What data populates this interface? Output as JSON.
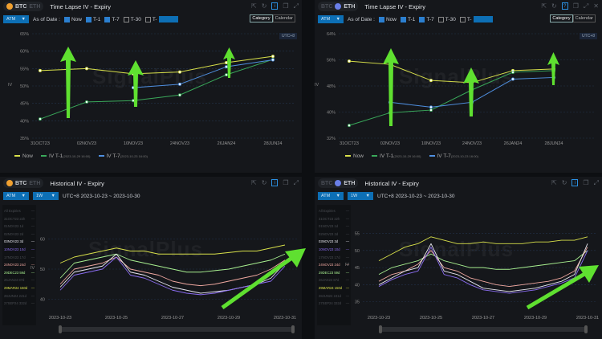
{
  "colors": {
    "now": "#d8e04a",
    "t1": "#3aa85a",
    "t7": "#4f8fe0",
    "accent": "#0d6fb5",
    "arrow": "#5fe030"
  },
  "watermark": "SignalPlus",
  "panels": {
    "tl": {
      "coin_active": "BTC",
      "coin_inactive": "ETH",
      "title": "Time Lapse IV - Expiry",
      "select": "ATM",
      "as_of": "As of Date :",
      "checks": [
        {
          "label": "Now",
          "checked": true
        },
        {
          "label": "T-1",
          "checked": true
        },
        {
          "label": "T-7",
          "checked": true
        },
        {
          "label": "T-30",
          "checked": false
        },
        {
          "label": "T-",
          "checked": false
        }
      ],
      "seg": [
        "Category",
        "Calendar"
      ],
      "utc": "UTC+8",
      "ylabel": "IV",
      "legend": [
        {
          "label": "Now"
        },
        {
          "label": "IV T-1",
          "sub": "(2023-10-29 16:00)"
        },
        {
          "label": "IV T-7",
          "sub": "(2023-10-23 16:00)"
        }
      ]
    },
    "tr": {
      "coin_inactive": "BTC",
      "coin_active": "ETH",
      "title": "Time Lapse IV - Expiry",
      "select": "ATM",
      "as_of": "As of Date :",
      "checks": [
        {
          "label": "Now",
          "checked": true
        },
        {
          "label": "T-1",
          "checked": true
        },
        {
          "label": "T-7",
          "checked": true
        },
        {
          "label": "T-30",
          "checked": false
        },
        {
          "label": "T-",
          "checked": false
        }
      ],
      "seg": [
        "Category",
        "Calendar"
      ],
      "utc": "UTC+8",
      "ylabel": "IV",
      "legend": [
        {
          "label": "Now"
        },
        {
          "label": "IV T-1",
          "sub": "(2023-10-29 16:00)"
        },
        {
          "label": "IV T-7",
          "sub": "(2023-10-23 16:00)"
        }
      ]
    },
    "bl": {
      "coin_active": "BTC",
      "coin_inactive": "ETH",
      "title": "Historical IV - Expiry",
      "select": "ATM",
      "select2": "1W",
      "range": "UTC+8 2023-10-23 ~ 2023-10-30",
      "ylabel": "IV"
    },
    "br": {
      "coin_inactive": "BTC",
      "coin_active": "ETH",
      "title": "Historical IV - Expiry",
      "select": "ATM",
      "select2": "1W",
      "range": "UTC+8 2023-10-23 ~ 2023-10-30",
      "ylabel": "IV"
    }
  },
  "expiries": [
    {
      "label": "All Expiries",
      "active": false,
      "color": "#555"
    },
    {
      "label": "31OCT23 22h",
      "active": false,
      "color": "#555"
    },
    {
      "label": "01NOV23 1d",
      "active": false,
      "color": "#555"
    },
    {
      "label": "02NOV23 2d",
      "active": false,
      "color": "#555"
    },
    {
      "label": "03NOV23 3d",
      "active": true,
      "color": "#e8e8f0"
    },
    {
      "label": "10NOV23 10d",
      "active": true,
      "color": "#8a6cf0"
    },
    {
      "label": "17NOV23 17d",
      "active": false,
      "color": "#555"
    },
    {
      "label": "24NOV23 24d",
      "active": true,
      "color": "#f0a8a0"
    },
    {
      "label": "29DEC23 59d",
      "active": true,
      "color": "#a8f090"
    },
    {
      "label": "26JAN24 87d",
      "active": false,
      "color": "#555"
    },
    {
      "label": "29MAR24 150d",
      "active": true,
      "color": "#d8e04a"
    },
    {
      "label": "28JUN24 241d",
      "active": false,
      "color": "#555"
    },
    {
      "label": "27SEP24 332d",
      "active": false,
      "color": "#555"
    }
  ],
  "chart_data": [
    {
      "id": "tl",
      "type": "line",
      "categories": [
        "31OCT23",
        "02NOV23",
        "10NOV23",
        "24NOV23",
        "26JAN24",
        "28JUN24"
      ],
      "yticks": [
        "35%",
        "40%",
        "45%",
        "50%",
        "55%",
        "60%",
        "65%"
      ],
      "ylim": [
        35,
        65
      ],
      "ylabel": "IV",
      "legend": "bottom-left",
      "grid": true,
      "series": [
        {
          "name": "Now",
          "color": "#d8e04a",
          "values": [
            54.4,
            55,
            53.5,
            54,
            56.7,
            58.5
          ]
        },
        {
          "name": "IV T-1",
          "color": "#3aa85a",
          "values": [
            40.5,
            45.4,
            45.8,
            47.4,
            53.2,
            57.6
          ]
        },
        {
          "name": "IV T-7",
          "color": "#4f8fe0",
          "values": [
            null,
            null,
            49.5,
            50.5,
            55.5,
            57.5
          ]
        }
      ]
    },
    {
      "id": "tr",
      "type": "line",
      "categories": [
        "31OCT23",
        "02NOV23",
        "10NOV23",
        "24NOV23",
        "26JAN24",
        "28JUN24"
      ],
      "yticks": [
        "32%",
        "40%",
        "48%",
        "56%",
        "64%"
      ],
      "ylim": [
        32,
        64
      ],
      "ylabel": "IV",
      "legend": "bottom-left",
      "grid": true,
      "series": [
        {
          "name": "Now",
          "color": "#d8e04a",
          "values": [
            55.6,
            54.6,
            49.7,
            49,
            52.7,
            53.2
          ]
        },
        {
          "name": "IV T-1",
          "color": "#3aa85a",
          "values": [
            35.9,
            39.8,
            40.6,
            46.8,
            52.2,
            52.7
          ]
        },
        {
          "name": "IV T-7",
          "color": "#4f8fe0",
          "values": [
            null,
            43,
            41.5,
            43,
            50.1,
            50.6
          ]
        }
      ]
    },
    {
      "id": "bl",
      "type": "line",
      "x_start": "2023-10-23",
      "x_end": "2023-10-31",
      "xticks": [
        "2023-10-23",
        "2023-10-25",
        "2023-10-27",
        "2023-10-29",
        "2023-10-31"
      ],
      "yticks": [
        "40",
        "50",
        "60"
      ],
      "ylim": [
        38,
        62
      ],
      "ylabel": "IV",
      "interval": "12h",
      "series": [
        {
          "name": "29MAR24 150d",
          "color": "#d8e04a",
          "values": [
            52,
            54,
            55,
            56,
            57,
            56,
            56,
            55,
            55,
            55,
            55,
            55,
            55.5,
            56,
            56,
            57,
            58
          ]
        },
        {
          "name": "29DEC23 59d",
          "color": "#a8f090",
          "values": [
            47,
            52,
            53,
            54,
            55,
            53,
            52,
            51,
            50,
            49,
            49,
            49.5,
            50,
            51,
            52,
            53,
            55
          ]
        },
        {
          "name": "24NOV23 24d",
          "color": "#f0a8a0",
          "values": [
            45,
            50,
            51,
            52,
            54,
            50,
            49,
            48,
            46,
            45,
            44.5,
            45,
            46,
            47,
            48,
            50,
            53
          ]
        },
        {
          "name": "03NOV23 3d",
          "color": "#e8e8f0",
          "values": [
            44,
            49,
            50,
            51,
            55,
            49,
            48,
            46,
            44,
            43,
            42,
            42.5,
            43,
            44,
            45,
            47,
            52
          ]
        },
        {
          "name": "10NOV23 10d",
          "color": "#8a6cf0",
          "values": [
            43,
            48,
            49,
            50,
            54,
            48,
            47,
            45,
            43,
            42,
            41.5,
            42,
            43,
            44,
            45,
            46,
            51
          ]
        }
      ]
    },
    {
      "id": "br",
      "type": "line",
      "x_start": "2023-10-23",
      "x_end": "2023-10-31",
      "xticks": [
        "2023-10-23",
        "2023-10-25",
        "2023-10-27",
        "2023-10-29",
        "2023-10-31"
      ],
      "yticks": [
        "35",
        "40",
        "45",
        "50",
        "55"
      ],
      "ylim": [
        34,
        57
      ],
      "ylabel": "IV",
      "interval": "12h",
      "series": [
        {
          "name": "29MAR24 150d",
          "color": "#d8e04a",
          "values": [
            47,
            49,
            51,
            52,
            54,
            53,
            52,
            52,
            52.5,
            52,
            52,
            52,
            52.5,
            52.5,
            53,
            53,
            54
          ]
        },
        {
          "name": "29DEC23 59d",
          "color": "#a8f090",
          "values": [
            43,
            45,
            46,
            47,
            49,
            47,
            46,
            45,
            45,
            44.5,
            44.5,
            45,
            45.5,
            46,
            46.5,
            47,
            50
          ]
        },
        {
          "name": "24NOV23 24d",
          "color": "#f0a8a0",
          "values": [
            41,
            43,
            44,
            46,
            50,
            45,
            44,
            42,
            41,
            40,
            39.5,
            40,
            40.5,
            41,
            42,
            44,
            51
          ]
        },
        {
          "name": "03NOV23 3d",
          "color": "#e8e8f0",
          "values": [
            40,
            42,
            44,
            45,
            52,
            44,
            43,
            41,
            39,
            38.5,
            38,
            38.5,
            39,
            40,
            41,
            43,
            52
          ]
        },
        {
          "name": "10NOV23 10d",
          "color": "#8a6cf0",
          "values": [
            39.5,
            41.5,
            43,
            44,
            51,
            43,
            42,
            40,
            38.5,
            38,
            37.5,
            38,
            38.5,
            39.5,
            40.5,
            42,
            50
          ]
        }
      ]
    }
  ]
}
